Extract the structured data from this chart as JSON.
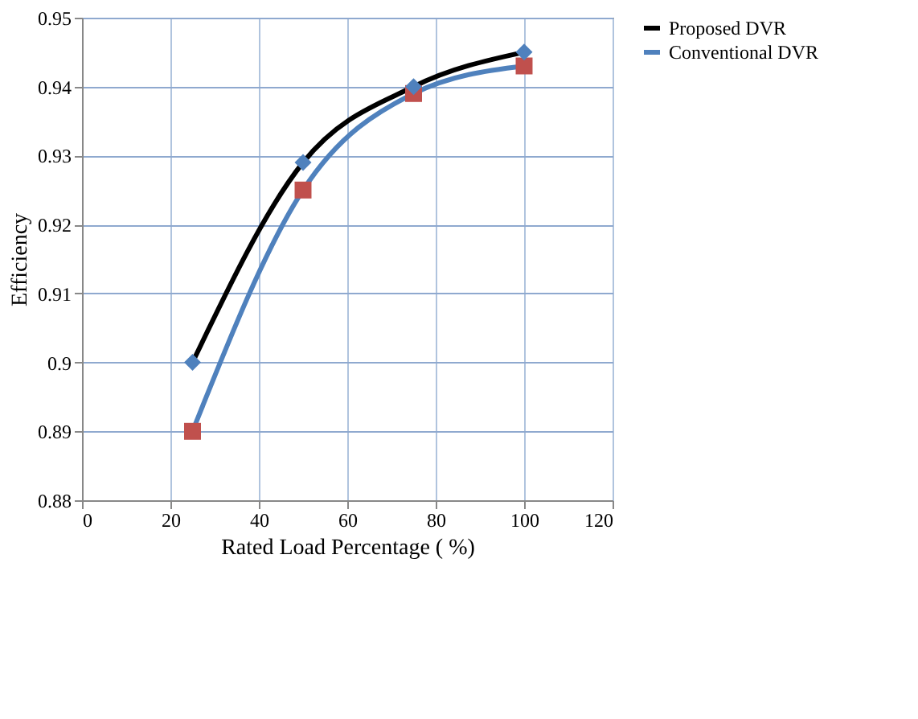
{
  "chart_data": {
    "type": "line",
    "xlabel": "Rated Load Percentage ( %)",
    "ylabel": "Efficiency",
    "x": [
      25,
      50,
      75,
      100
    ],
    "series": [
      {
        "name": "Proposed DVR",
        "color": "#000000",
        "colors": [
          "#4f81bd",
          "#4f81bd",
          "#4f81bd",
          "#4f81bd"
        ],
        "marker": "diamond",
        "values": [
          0.9,
          0.929,
          0.94,
          0.945
        ]
      },
      {
        "name": "Conventional DVR",
        "color": "#4f81bd",
        "colors": [
          "#c0504d",
          "#c0504d",
          "#c0504d",
          "#c0504d"
        ],
        "marker": "square",
        "values": [
          0.89,
          0.925,
          0.939,
          0.943
        ]
      }
    ],
    "xlim": [
      0,
      120
    ],
    "xticks": [
      0,
      20,
      40,
      60,
      80,
      100,
      120
    ],
    "ylim": [
      0.88,
      0.95
    ],
    "yticks": [
      0.88,
      0.89,
      0.9,
      0.91,
      0.92,
      0.93,
      0.94,
      0.95
    ],
    "grid": true,
    "legend": "right"
  }
}
